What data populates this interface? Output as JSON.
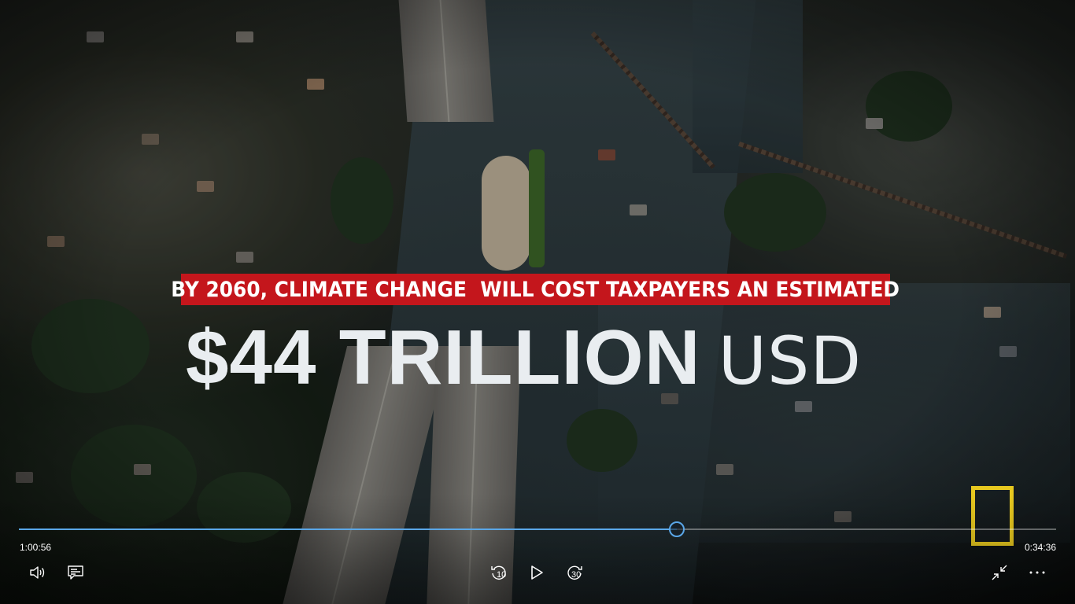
{
  "video": {
    "headline": "BY 2060, CLIMATE CHANGE  WILL COST TAXPAYERS AN ESTIMATED",
    "amount": "$44 TRILLION",
    "unit": "USD"
  },
  "player": {
    "elapsed": "1:00:56",
    "remaining": "0:34:36",
    "progress": 0.634,
    "accent_color": "#5aa7e8",
    "skip_back_label": "10",
    "skip_forward_label": "30"
  },
  "icons": {
    "volume": "volume-icon",
    "captions": "captions-icon",
    "skip_back": "skip-back-10-icon",
    "play": "play-icon",
    "skip_forward": "skip-forward-30-icon",
    "mini_view": "shrink-icon",
    "more": "more-options-icon"
  },
  "colors": {
    "headline_bar": "#c4161c",
    "logo": "#e7c81f"
  }
}
